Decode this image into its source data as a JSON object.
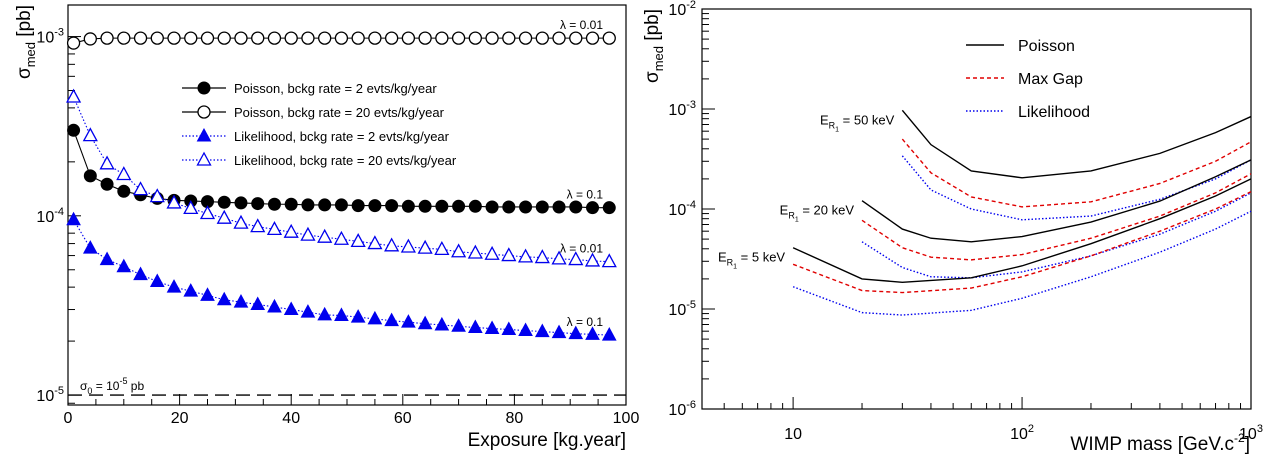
{
  "chart_data": [
    {
      "type": "scatter",
      "xlabel": "Exposure [kg.year]",
      "ylabel_main": "σ",
      "ylabel_sub": "med",
      "ylabel_unit": " [pb]",
      "xlim": [
        0,
        100
      ],
      "ylim": [
        8.8e-06,
        0.0015
      ],
      "yscale": "log",
      "grid": false,
      "legend_position": "upper-center",
      "x_ticks": [
        0,
        20,
        40,
        60,
        80,
        100
      ],
      "x_tick_labels": [
        "0",
        "20",
        "40",
        "60",
        "80",
        "100"
      ],
      "y_ticks": [
        1e-05,
        0.0001,
        0.001
      ],
      "y_tick_labels": [
        "10^-5",
        "10^-4",
        "10^-3"
      ],
      "x": [
        1,
        4,
        7,
        10,
        13,
        16,
        19,
        22,
        25,
        28,
        31,
        34,
        37,
        40,
        43,
        46,
        49,
        52,
        55,
        58,
        61,
        64,
        67,
        70,
        73,
        76,
        79,
        82,
        85,
        88,
        91,
        94,
        97
      ],
      "series": [
        {
          "name": "Poisson, bckg rate = 2 evts/kg/year",
          "marker": "filled-circle",
          "color": "#000000",
          "line": "solid",
          "values": [
            0.0003,
            0.000167,
            0.00015,
            0.000137,
            0.000131,
            0.000125,
            0.000122,
            0.000121,
            0.00012,
            0.000119,
            0.000118,
            0.000117,
            0.000116,
            0.000116,
            0.000115,
            0.000115,
            0.000115,
            0.000114,
            0.000114,
            0.000114,
            0.000113,
            0.000113,
            0.000113,
            0.000113,
            0.000113,
            0.000112,
            0.000112,
            0.000112,
            0.000112,
            0.000112,
            0.000112,
            0.000111,
            0.000111
          ]
        },
        {
          "name": "Poisson, bckg rate = 20 evts/kg/year",
          "marker": "open-circle",
          "color": "#000000",
          "line": "solid",
          "values": [
            0.00092,
            0.00097,
            0.00098,
            0.00098,
            0.00098,
            0.00098,
            0.00098,
            0.00098,
            0.00098,
            0.00098,
            0.00098,
            0.00098,
            0.00098,
            0.00098,
            0.00098,
            0.00098,
            0.00098,
            0.00098,
            0.00098,
            0.00098,
            0.00098,
            0.00098,
            0.00098,
            0.00098,
            0.00098,
            0.00098,
            0.00098,
            0.00098,
            0.00098,
            0.00098,
            0.00098,
            0.00098,
            0.00098
          ]
        },
        {
          "name": "Likelihood, bckg rate = 2 evts/kg/year",
          "marker": "filled-triangle",
          "color": "#0000ee",
          "line": "dotted",
          "values": [
            9.5e-05,
            6.6e-05,
            5.7e-05,
            5.2e-05,
            4.7e-05,
            4.3e-05,
            4e-05,
            3.8e-05,
            3.6e-05,
            3.4e-05,
            3.3e-05,
            3.2e-05,
            3.1e-05,
            3e-05,
            2.9e-05,
            2.8e-05,
            2.78e-05,
            2.72e-05,
            2.66e-05,
            2.6e-05,
            2.55e-05,
            2.5e-05,
            2.46e-05,
            2.42e-05,
            2.38e-05,
            2.35e-05,
            2.32e-05,
            2.29e-05,
            2.26e-05,
            2.23e-05,
            2.2e-05,
            2.18e-05,
            2.16e-05
          ]
        },
        {
          "name": "Likelihood, bckg rate = 20 evts/kg/year",
          "marker": "open-triangle",
          "color": "#0000ee",
          "line": "dotted",
          "values": [
            0.00046,
            0.00028,
            0.000195,
            0.00017,
            0.00014,
            0.000128,
            0.000118,
            0.00011,
            0.000103,
            9.7e-05,
            9.1e-05,
            8.7e-05,
            8.4e-05,
            8.1e-05,
            7.8e-05,
            7.6e-05,
            7.4e-05,
            7.2e-05,
            7e-05,
            6.8e-05,
            6.7e-05,
            6.6e-05,
            6.5e-05,
            6.3e-05,
            6.2e-05,
            6.1e-05,
            6e-05,
            5.9e-05,
            5.85e-05,
            5.75e-05,
            5.7e-05,
            5.6e-05,
            5.55e-05
          ]
        }
      ],
      "annotations": [
        {
          "text": "λ = 0.01",
          "near_series": 1
        },
        {
          "text": "λ = 0.1",
          "near_series": 0
        },
        {
          "text": "λ = 0.01",
          "near_series": 3
        },
        {
          "text": "λ = 0.1",
          "near_series": 2
        }
      ],
      "reference_line": {
        "label_sym": "σ",
        "label_sub": "0",
        "label_mid": " = 10",
        "label_exp": "-5",
        "label_tail": " pb",
        "value": 1e-05,
        "style": "dashed"
      }
    },
    {
      "type": "line",
      "xlabel_main": "WIMP mass [GeV.c",
      "xlabel_exp": "-2",
      "xlabel_end": "]",
      "ylabel_main": "σ",
      "ylabel_sub": "med",
      "ylabel_unit": " [pb]",
      "xscale": "log",
      "yscale": "log",
      "xlim": [
        4,
        1000
      ],
      "ylim": [
        1e-06,
        0.01
      ],
      "grid": false,
      "legend_position": "upper-left",
      "x_tick_labels": [
        {
          "value": 10,
          "base": "10",
          "exp": ""
        },
        {
          "value": 100,
          "base": "10",
          "exp": "2"
        },
        {
          "value": 1000,
          "base": "10",
          "exp": "3"
        }
      ],
      "y_tick_labels": [
        {
          "value": 1e-06,
          "base": "10",
          "exp": "-6"
        },
        {
          "value": 1e-05,
          "base": "10",
          "exp": "-5"
        },
        {
          "value": 0.0001,
          "base": "10",
          "exp": "-4"
        },
        {
          "value": 0.001,
          "base": "10",
          "exp": "-3"
        },
        {
          "value": 0.01,
          "base": "10",
          "exp": "-2"
        }
      ],
      "legend": [
        {
          "name": "Poisson",
          "color": "#000000",
          "style": "solid"
        },
        {
          "name": "Max Gap",
          "color": "#e00000",
          "style": "dashed"
        },
        {
          "name": "Likelihood",
          "color": "#0000ee",
          "style": "dotted"
        }
      ],
      "groups": [
        {
          "label_main": "E",
          "label_sub": "R",
          "label_subsub": "1",
          "label_tail": " = 50 keV",
          "series": [
            {
              "method": "Poisson",
              "x": [
                30,
                40,
                60,
                100,
                200,
                400,
                700,
                1000
              ],
              "values": [
                0.00097,
                0.00044,
                0.00024,
                0.000205,
                0.00024,
                0.00036,
                0.00058,
                0.00084
              ]
            },
            {
              "method": "Max Gap",
              "x": [
                30,
                40,
                60,
                100,
                200,
                400,
                700,
                1000
              ],
              "values": [
                0.0005,
                0.00023,
                0.000132,
                0.000105,
                0.000118,
                0.00018,
                0.0003,
                0.00047
              ]
            },
            {
              "method": "Likelihood",
              "x": [
                30,
                40,
                60,
                100,
                200,
                400,
                700,
                1000
              ],
              "values": [
                0.00034,
                0.000155,
                0.0001,
                7.8e-05,
                8.5e-05,
                0.000125,
                0.0002,
                0.00031
              ]
            }
          ]
        },
        {
          "label_main": "E",
          "label_sub": "R",
          "label_subsub": "1",
          "label_tail": " = 20 keV",
          "series": [
            {
              "method": "Poisson",
              "x": [
                20,
                30,
                40,
                60,
                100,
                200,
                400,
                700,
                1000
              ],
              "values": [
                0.000121,
                6.3e-05,
                5.1e-05,
                4.7e-05,
                5.3e-05,
                7.4e-05,
                0.00012,
                0.00021,
                0.00031
              ]
            },
            {
              "method": "Max Gap",
              "x": [
                20,
                30,
                40,
                60,
                100,
                200,
                400,
                700,
                1000
              ],
              "values": [
                7.7e-05,
                4.1e-05,
                3.3e-05,
                3.1e-05,
                3.5e-05,
                5.1e-05,
                8.5e-05,
                0.000145,
                0.000225
              ]
            },
            {
              "method": "Likelihood",
              "x": [
                20,
                30,
                40,
                60,
                100,
                200,
                400,
                700,
                1000
              ],
              "values": [
                4.7e-05,
                2.6e-05,
                2.1e-05,
                2.05e-05,
                2.35e-05,
                3.4e-05,
                5.6e-05,
                9.5e-05,
                0.000145
              ]
            }
          ]
        },
        {
          "label_main": "E",
          "label_sub": "R",
          "label_subsub": "1",
          "label_tail": " = 5 keV",
          "series": [
            {
              "method": "Poisson",
              "x": [
                10,
                20,
                30,
                60,
                100,
                200,
                400,
                700,
                1000
              ],
              "values": [
                4.1e-05,
                2e-05,
                1.85e-05,
                2.05e-05,
                2.7e-05,
                4.5e-05,
                8e-05,
                0.000135,
                0.0002
              ]
            },
            {
              "method": "Max Gap",
              "x": [
                10,
                20,
                30,
                60,
                100,
                200,
                400,
                700,
                1000
              ],
              "values": [
                2.8e-05,
                1.53e-05,
                1.46e-05,
                1.62e-05,
                2.1e-05,
                3.4e-05,
                6e-05,
                0.0001,
                0.000149
              ]
            },
            {
              "method": "Likelihood",
              "x": [
                10,
                20,
                30,
                60,
                100,
                200,
                400,
                700,
                1000
              ],
              "values": [
                1.67e-05,
                9.2e-06,
                8.7e-06,
                9.7e-06,
                1.28e-05,
                2.1e-05,
                3.7e-05,
                6.3e-05,
                9.5e-05
              ]
            }
          ]
        }
      ]
    }
  ]
}
